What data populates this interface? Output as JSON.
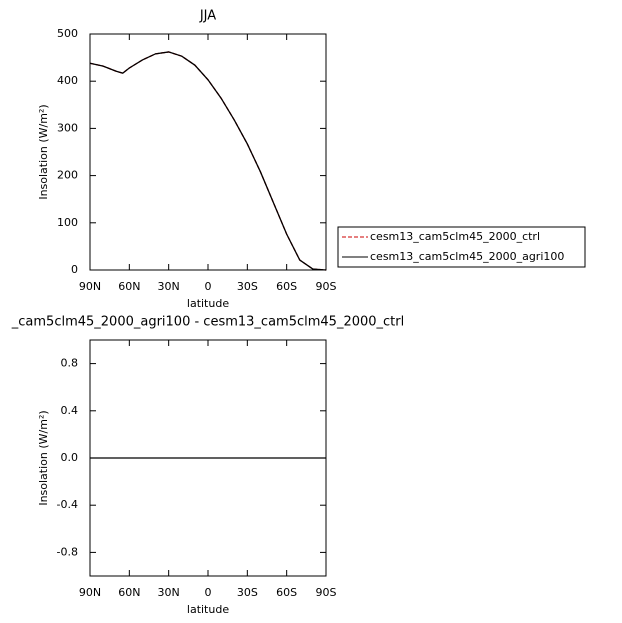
{
  "chart_data": [
    {
      "type": "line",
      "title": "JJA",
      "xlabel": "latitude",
      "ylabel": "Insolation (W/m²)",
      "x": [
        90,
        80,
        70,
        65,
        60,
        50,
        40,
        30,
        20,
        10,
        0,
        -10,
        -20,
        -30,
        -40,
        -50,
        -60,
        -70,
        -80,
        -90
      ],
      "series": [
        {
          "name": "cesm13_cam5clm45_2000_ctrl",
          "color": "#cc0000",
          "dashed": true,
          "values": [
            438,
            432,
            421,
            417,
            428,
            445,
            458,
            462,
            453,
            434,
            403,
            364,
            318,
            267,
            208,
            142,
            76,
            21,
            2,
            0
          ]
        },
        {
          "name": "cesm13_cam5clm45_2000_agri100",
          "color": "#000000",
          "dashed": false,
          "values": [
            438,
            432,
            421,
            417,
            428,
            445,
            458,
            462,
            453,
            434,
            403,
            364,
            318,
            267,
            208,
            142,
            76,
            21,
            2,
            0
          ]
        }
      ],
      "xlim": [
        90,
        -90
      ],
      "xticks": [
        {
          "value": 90,
          "label": "90N"
        },
        {
          "value": 60,
          "label": "60N"
        },
        {
          "value": 30,
          "label": "30N"
        },
        0,
        {
          "value": -30,
          "label": "30S"
        },
        {
          "value": -60,
          "label": "60S"
        },
        {
          "value": -90,
          "label": "90S"
        }
      ],
      "ylim": [
        0,
        500
      ],
      "yticks": [
        0,
        100,
        200,
        300,
        400,
        500
      ],
      "legend": "outside-right"
    },
    {
      "type": "line",
      "title": "_cam5clm45_2000_agri100 - cesm13_cam5clm45_2000_ctrl",
      "xlabel": "latitude",
      "ylabel": "Insolation (W/m²)",
      "x": [
        90,
        60,
        30,
        0,
        -30,
        -60,
        -90
      ],
      "series": [
        {
          "color": "#000000",
          "dashed": false,
          "values": [
            0,
            0,
            0,
            0,
            0,
            0,
            0
          ]
        }
      ],
      "xlim": [
        90,
        -90
      ],
      "xticks": [
        {
          "value": 90,
          "label": "90N"
        },
        {
          "value": 60,
          "label": "60N"
        },
        {
          "value": 30,
          "label": "30N"
        },
        0,
        {
          "value": -30,
          "label": "30S"
        },
        {
          "value": -60,
          "label": "60S"
        },
        {
          "value": -90,
          "label": "90S"
        }
      ],
      "ylim": [
        -1,
        1
      ],
      "yticks": [
        0.8,
        0.4,
        {
          "value": 0,
          "label": "0.0"
        },
        -0.4,
        -0.8
      ]
    }
  ]
}
